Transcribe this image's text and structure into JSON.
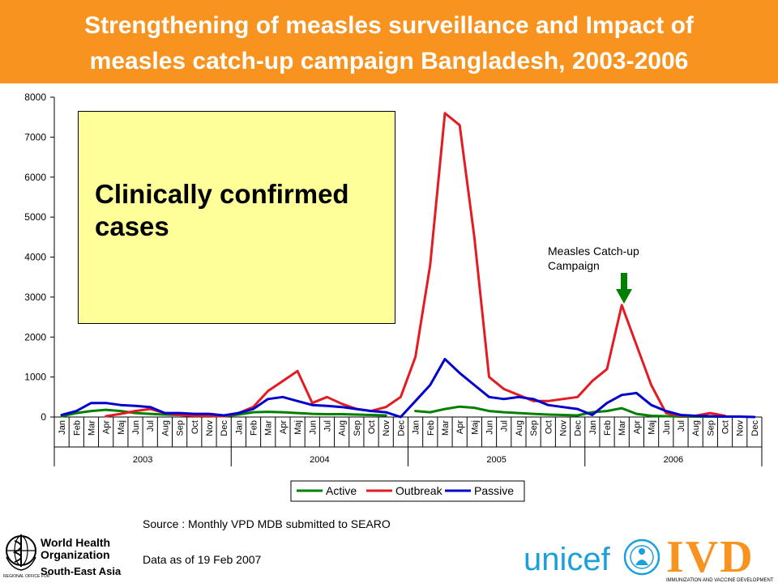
{
  "header": {
    "title": "Strengthening of measles surveillance and Impact of\nmeasles catch-up campaign Bangladesh, 2003-2006",
    "background_color": "#f7931e"
  },
  "note_box": {
    "text": "Clinically confirmed\ncases",
    "background_color": "#ffff99"
  },
  "annotation": {
    "label": "Measles Catch-up\nCampaign",
    "arrow_color": "#008000",
    "icon": "down-arrow-icon"
  },
  "source_text": "Source : Monthly VPD MDB submitted to SEARO",
  "data_as_of": "Data as of 19 Feb 2007",
  "logos": {
    "who": {
      "icon": "who-emblem-icon",
      "line1": "World Health",
      "line2": "Organization",
      "line3": "South-East Asia",
      "line4": "REGIONAL OFFICE FOR"
    },
    "unicef": {
      "text": "unicef",
      "icon": "unicef-emblem-icon",
      "color": "#1ca0dc"
    },
    "ivd": {
      "text": "IVD",
      "tagline": "IMMUNIZATION AND VACCINE DEVELOPMENT",
      "color": "#f7931e"
    }
  },
  "chart_data": {
    "type": "line",
    "title": "",
    "xlabel": "",
    "ylabel": "",
    "ylim": [
      0,
      8000
    ],
    "yticks": [
      0,
      1000,
      2000,
      3000,
      4000,
      5000,
      6000,
      7000,
      8000
    ],
    "grid": false,
    "legend_position": "bottom",
    "categories": [
      "Jan",
      "Feb",
      "Mar",
      "Apr",
      "May",
      "Jun",
      "Jul",
      "Aug",
      "Sep",
      "Oct",
      "Nov",
      "Dec",
      "Jan",
      "Feb",
      "Mar",
      "Apr",
      "May",
      "Jun",
      "Jul",
      "Aug",
      "Sep",
      "Oct",
      "Nov",
      "Dec",
      "Jan",
      "Feb",
      "Mar",
      "Apr",
      "May",
      "Jun",
      "Jul",
      "Aug",
      "Sep",
      "Oct",
      "Nov",
      "Dec",
      "Jan",
      "Feb",
      "Mar",
      "Apr",
      "May",
      "Jun",
      "Jul",
      "Aug",
      "Sep",
      "Oct",
      "Nov",
      "Dec"
    ],
    "category_labels": [
      "Jan",
      "Feb",
      "Mar",
      "Apr",
      "Maj",
      "Jun",
      "Jul",
      "Aug",
      "Sep",
      "Oct",
      "Nov",
      "Dec",
      "Jan",
      "Feb",
      "Mar",
      "Apr",
      "Maj",
      "Jun",
      "Jul",
      "Aug",
      "Sep",
      "Oct",
      "Nov",
      "Dec",
      "Jan",
      "Feb",
      "Mar",
      "Apr",
      "Maj",
      "Jun",
      "Jul",
      "Aug",
      "Sep",
      "Oct",
      "Nov",
      "Dec",
      "Jan",
      "Feb",
      "Mar",
      "Apr",
      "Maj",
      "Jun",
      "Jul",
      "Aug",
      "Sep",
      "Oct",
      "Nov",
      "Dec"
    ],
    "years": [
      "2003",
      "2004",
      "2005",
      "2006"
    ],
    "series": [
      {
        "name": "Active",
        "color": "#008000",
        "values": [
          20,
          100,
          150,
          180,
          150,
          100,
          80,
          60,
          50,
          40,
          30,
          20,
          60,
          120,
          130,
          120,
          100,
          80,
          70,
          70,
          60,
          50,
          40,
          null,
          150,
          120,
          200,
          260,
          230,
          150,
          120,
          100,
          80,
          60,
          50,
          40,
          120,
          150,
          220,
          80,
          30,
          20,
          10,
          10,
          10,
          10,
          10,
          null
        ]
      },
      {
        "name": "Outbreak",
        "color": "#e31b23",
        "values": [
          null,
          null,
          null,
          20,
          80,
          150,
          200,
          100,
          50,
          30,
          30,
          20,
          100,
          250,
          650,
          900,
          1150,
          350,
          500,
          330,
          200,
          150,
          250,
          500,
          1500,
          3800,
          7600,
          7300,
          4500,
          1000,
          700,
          550,
          400,
          400,
          450,
          500,
          900,
          1200,
          2800,
          1800,
          800,
          100,
          30,
          30,
          100,
          30,
          null,
          null
        ]
      },
      {
        "name": "Passive",
        "color": "#0000cc",
        "values": [
          50,
          150,
          350,
          350,
          300,
          280,
          250,
          100,
          100,
          80,
          80,
          40,
          100,
          200,
          450,
          500,
          400,
          300,
          280,
          250,
          200,
          150,
          120,
          0,
          400,
          800,
          1450,
          1100,
          800,
          500,
          450,
          500,
          450,
          300,
          250,
          200,
          50,
          350,
          550,
          600,
          300,
          150,
          50,
          30,
          20,
          10,
          10,
          0
        ]
      }
    ]
  }
}
